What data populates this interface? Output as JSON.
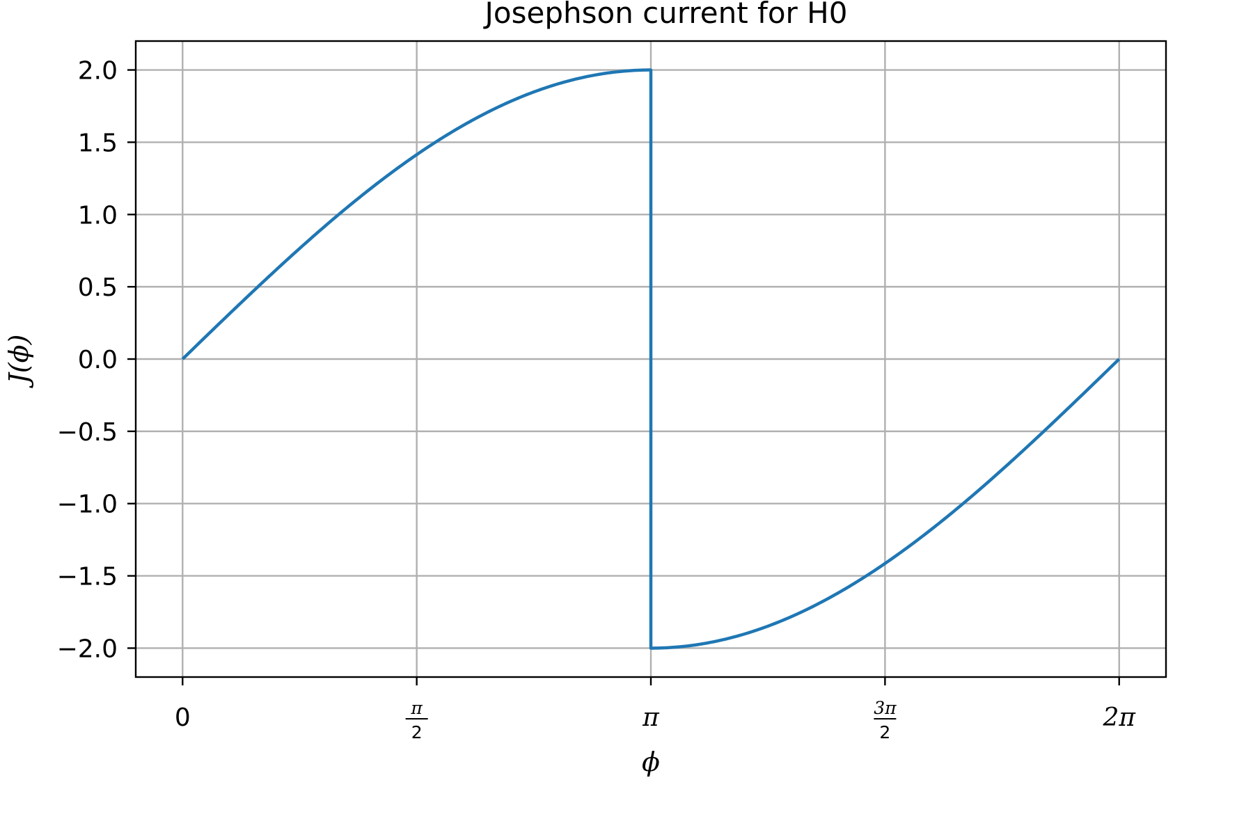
{
  "chart_data": {
    "type": "line",
    "title": "Josephson current for H0",
    "xlabel": "ϕ",
    "ylabel": "J(ϕ)",
    "xlim_rad": [
      -0.3142,
      6.5973
    ],
    "ylim": [
      -2.2,
      2.2
    ],
    "grid": true,
    "x_ticks": [
      {
        "value": 0,
        "label": "0"
      },
      {
        "value": 1.5708,
        "label": "π/2",
        "num": "π",
        "den": "2"
      },
      {
        "value": 3.1416,
        "label": "π"
      },
      {
        "value": 4.7124,
        "label": "3π/2",
        "num": "3π",
        "den": "2"
      },
      {
        "value": 6.2832,
        "label": "2π"
      }
    ],
    "y_ticks": [
      "2.0",
      "1.5",
      "1.0",
      "0.5",
      "0.0",
      "−0.5",
      "−1.0",
      "−1.5",
      "−2.0"
    ],
    "y_tick_values": [
      2.0,
      1.5,
      1.0,
      0.5,
      0.0,
      -0.5,
      -1.0,
      -1.5,
      -2.0
    ],
    "series": [
      {
        "color": "#1f77b4",
        "x": [
          0,
          0.3142,
          0.6283,
          0.9425,
          1.2566,
          1.5708,
          1.885,
          2.1991,
          2.5133,
          2.8274,
          3.1416,
          3.1416,
          3.4558,
          3.7699,
          4.0841,
          4.3982,
          4.7124,
          5.0265,
          5.3407,
          5.6549,
          5.969,
          6.2832
        ],
        "y": [
          0,
          0.313,
          0.618,
          0.908,
          1.176,
          1.414,
          1.618,
          1.782,
          1.902,
          1.975,
          2.0,
          -2.0,
          -1.975,
          -1.902,
          -1.782,
          -1.618,
          -1.414,
          -1.176,
          -0.908,
          -0.618,
          -0.313,
          0
        ]
      }
    ]
  }
}
